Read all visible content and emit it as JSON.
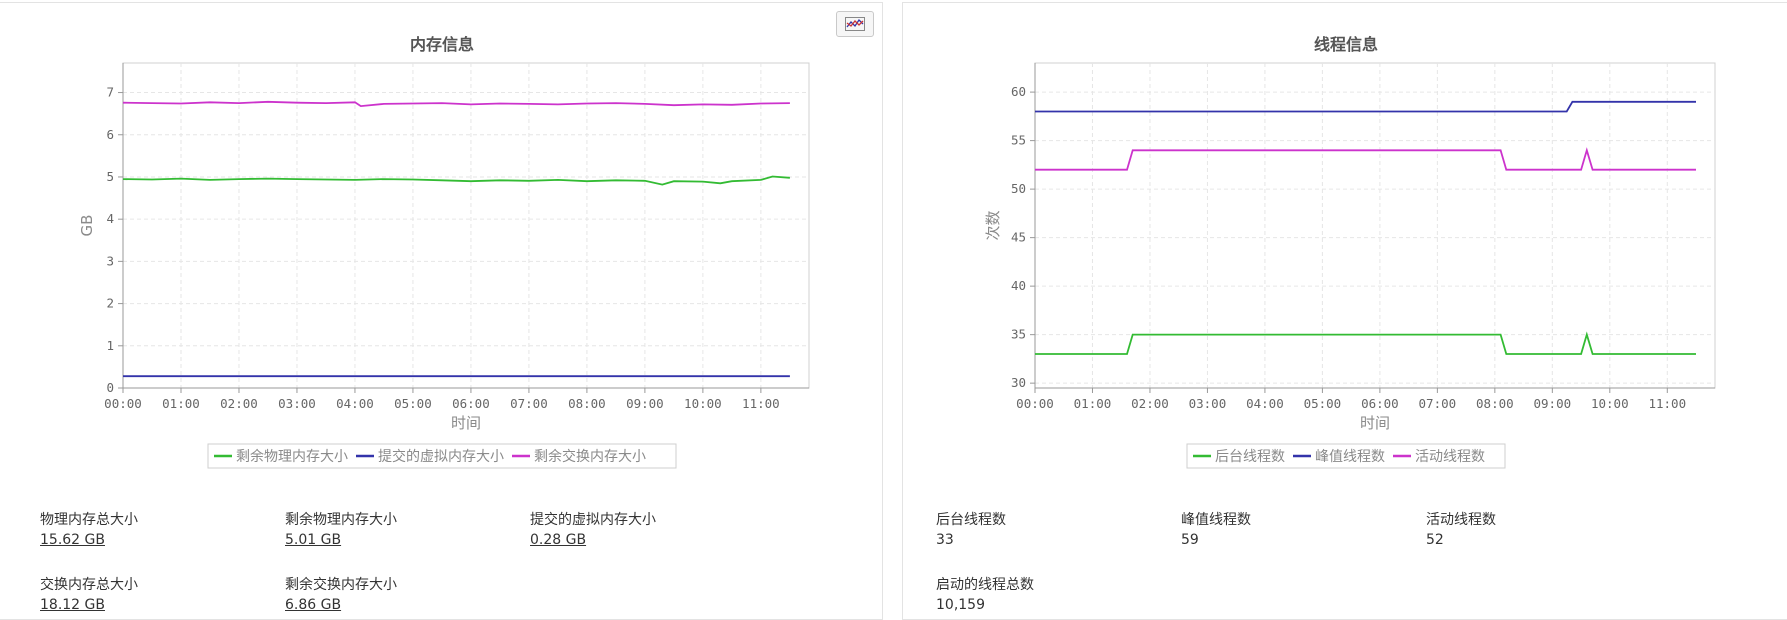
{
  "memory": {
    "toolbar_icon": "chart-toggle-icon",
    "chart_data": {
      "type": "line",
      "title": "内存信息",
      "xlabel": "时间",
      "ylabel": "GB",
      "x_ticks": [
        "00:00",
        "01:00",
        "02:00",
        "03:00",
        "04:00",
        "05:00",
        "06:00",
        "07:00",
        "08:00",
        "09:00",
        "10:00",
        "11:00"
      ],
      "y_ticks": [
        0,
        1,
        2,
        3,
        4,
        5,
        6,
        7
      ],
      "xlim": [
        0,
        11.83
      ],
      "ylim": [
        0,
        7.7
      ],
      "grid": true,
      "legend": "bottom",
      "series": [
        {
          "name": "剩余物理内存大小",
          "color": "#33bb33",
          "x": [
            0,
            0.5,
            1,
            1.5,
            2,
            2.5,
            3,
            3.5,
            4,
            4.5,
            5,
            5.5,
            6,
            6.5,
            7,
            7.5,
            8,
            8.5,
            9,
            9.3,
            9.5,
            10,
            10.3,
            10.5,
            11,
            11.2,
            11.5
          ],
          "y": [
            4.95,
            4.94,
            4.96,
            4.93,
            4.95,
            4.96,
            4.95,
            4.94,
            4.93,
            4.95,
            4.94,
            4.92,
            4.9,
            4.92,
            4.91,
            4.93,
            4.9,
            4.92,
            4.91,
            4.82,
            4.9,
            4.89,
            4.85,
            4.9,
            4.93,
            5.01,
            4.98
          ]
        },
        {
          "name": "提交的虚拟内存大小",
          "color": "#3333aa",
          "x": [
            0,
            11.5
          ],
          "y": [
            0.28,
            0.28
          ]
        },
        {
          "name": "剩余交换内存大小",
          "color": "#cc33cc",
          "x": [
            0,
            0.5,
            1,
            1.5,
            2,
            2.5,
            3,
            3.5,
            4,
            4.1,
            4.5,
            5,
            5.5,
            6,
            6.5,
            7,
            7.5,
            8,
            8.5,
            9,
            9.5,
            10,
            10.5,
            11,
            11.5
          ],
          "y": [
            6.76,
            6.75,
            6.74,
            6.77,
            6.75,
            6.78,
            6.76,
            6.75,
            6.77,
            6.68,
            6.73,
            6.74,
            6.75,
            6.72,
            6.74,
            6.73,
            6.72,
            6.74,
            6.75,
            6.73,
            6.7,
            6.72,
            6.71,
            6.74,
            6.75
          ]
        }
      ]
    },
    "stats": [
      {
        "label": "物理内存总大小",
        "value": "15.62 GB"
      },
      {
        "label": "剩余物理内存大小",
        "value": "5.01 GB"
      },
      {
        "label": "提交的虚拟内存大小",
        "value": "0.28 GB"
      },
      {
        "label": "交换内存总大小",
        "value": "18.12 GB"
      },
      {
        "label": "剩余交换内存大小",
        "value": "6.86 GB"
      }
    ]
  },
  "threads": {
    "chart_data": {
      "type": "line",
      "title": "线程信息",
      "xlabel": "时间",
      "ylabel": "次数",
      "x_ticks": [
        "00:00",
        "01:00",
        "02:00",
        "03:00",
        "04:00",
        "05:00",
        "06:00",
        "07:00",
        "08:00",
        "09:00",
        "10:00",
        "11:00"
      ],
      "y_ticks": [
        30,
        35,
        40,
        45,
        50,
        55,
        60
      ],
      "xlim": [
        0,
        11.83
      ],
      "ylim": [
        29.5,
        63
      ],
      "grid": true,
      "legend": "bottom",
      "series": [
        {
          "name": "后台线程数",
          "color": "#33bb33",
          "x": [
            0,
            1.6,
            1.7,
            8.1,
            8.2,
            9.5,
            9.6,
            9.7,
            11.5
          ],
          "y": [
            33,
            33,
            35,
            35,
            33,
            33,
            35,
            33,
            33
          ]
        },
        {
          "name": "峰值线程数",
          "color": "#3333aa",
          "x": [
            0,
            9.25,
            9.35,
            11.5
          ],
          "y": [
            58,
            58,
            59,
            59
          ]
        },
        {
          "name": "活动线程数",
          "color": "#cc33cc",
          "x": [
            0,
            1.6,
            1.7,
            8.1,
            8.2,
            9.5,
            9.6,
            9.7,
            11.5
          ],
          "y": [
            52,
            52,
            54,
            54,
            52,
            52,
            54,
            52,
            52
          ]
        }
      ]
    },
    "stats": [
      {
        "label": "后台线程数",
        "value": "33"
      },
      {
        "label": "峰值线程数",
        "value": "59"
      },
      {
        "label": "活动线程数",
        "value": "52"
      },
      {
        "label": "启动的线程总数",
        "value": "10,159"
      }
    ]
  }
}
